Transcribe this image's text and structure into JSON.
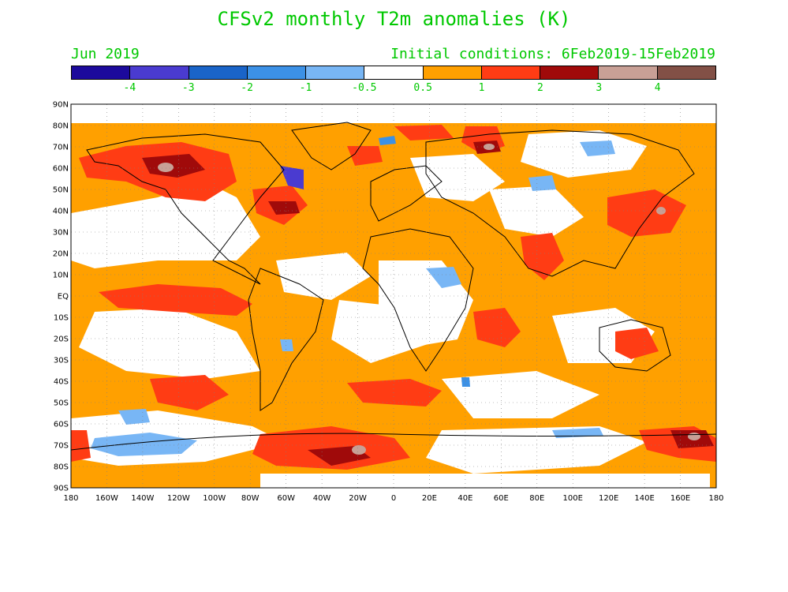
{
  "header": {
    "title": "CFSv2 monthly T2m anomalies (K)",
    "month": "Jun 2019",
    "initial_conditions": "Initial conditions: 6Feb2019-15Feb2019"
  },
  "colorbar": {
    "colors": [
      "#1c0a9c",
      "#4a3bd0",
      "#1a64c8",
      "#3c91e6",
      "#78b6f5",
      "#ffffff",
      "#ffa000",
      "#ff3c14",
      "#a00a0a",
      "#c8a096",
      "#825046"
    ],
    "labels": [
      "-4",
      "-3",
      "-2",
      "-1",
      "-0.5",
      "0.5",
      "1",
      "2",
      "3",
      "4"
    ]
  },
  "axes": {
    "lat_labels": [
      "90N",
      "80N",
      "70N",
      "60N",
      "50N",
      "40N",
      "30N",
      "20N",
      "10N",
      "EQ",
      "10S",
      "20S",
      "30S",
      "40S",
      "50S",
      "60S",
      "70S",
      "80S",
      "90S"
    ],
    "lon_labels": [
      "180",
      "160W",
      "140W",
      "120W",
      "100W",
      "80W",
      "60W",
      "40W",
      "20W",
      "0",
      "20E",
      "40E",
      "60E",
      "80E",
      "100E",
      "120E",
      "140E",
      "160E",
      "180"
    ]
  }
}
